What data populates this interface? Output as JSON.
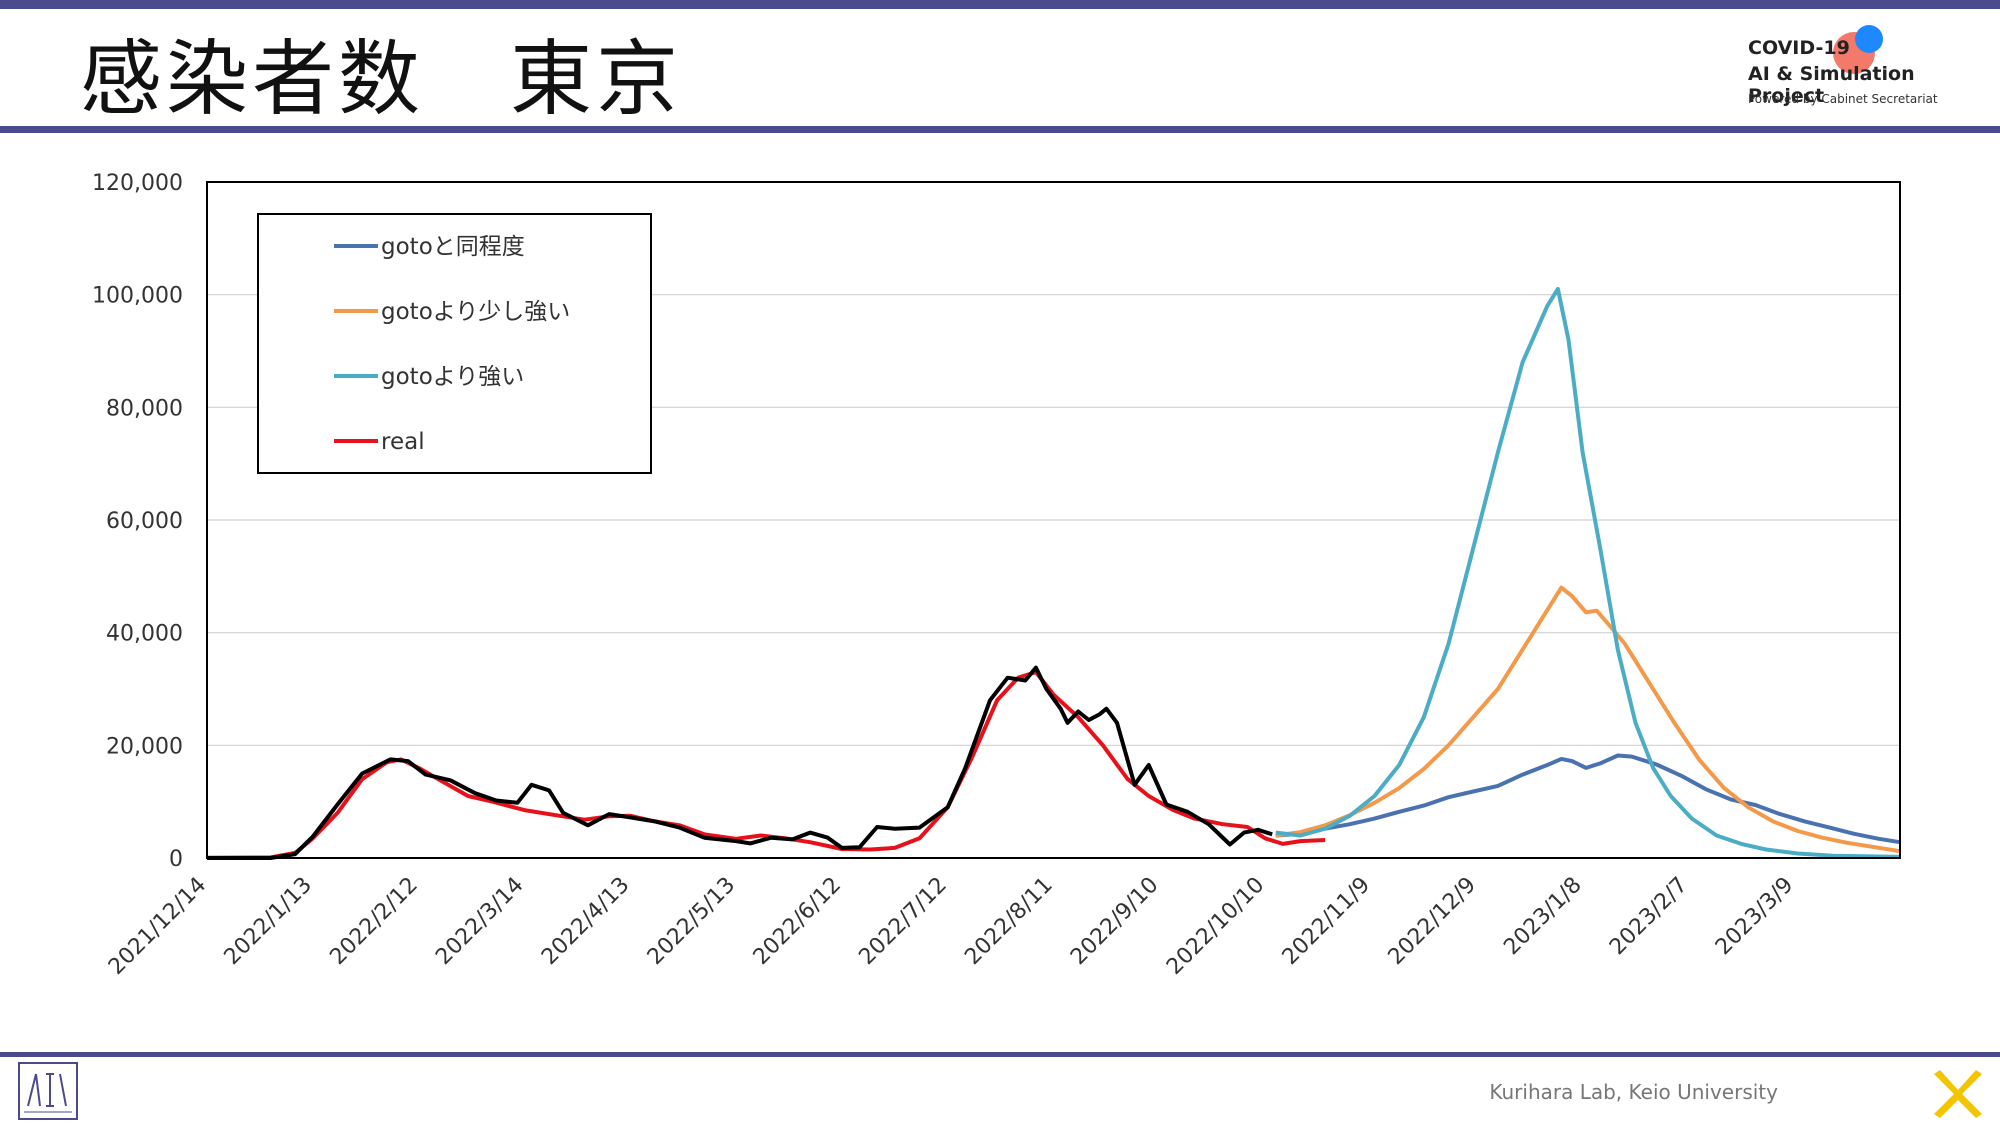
{
  "slide": {
    "title": "感染者数　東京",
    "logo_line1": "COVID-19",
    "logo_line2": "AI & Simulation Project",
    "logo_line3": "Powered by Cabinet Secretariat",
    "footer": "Kurihara Lab, Keio University",
    "accent_color": "#4a4a8c"
  },
  "chart_data": {
    "type": "line",
    "x_tick_labels": [
      "2021/12/14",
      "2022/1/13",
      "2022/2/12",
      "2022/3/14",
      "2022/4/13",
      "2022/5/13",
      "2022/6/12",
      "2022/7/12",
      "2022/8/11",
      "2022/9/10",
      "2022/10/10",
      "2022/11/9",
      "2022/12/9",
      "2023/1/8",
      "2023/2/7",
      "2023/3/9"
    ],
    "y_tick_labels": [
      "0",
      "20,000",
      "40,000",
      "60,000",
      "80,000",
      "100,000",
      "120,000"
    ],
    "ylim": [
      0,
      120000
    ],
    "xlim": [
      "2021-12-14",
      "2023-04-08"
    ],
    "grid": "horizontal",
    "legend_position": "top-left",
    "series": [
      {
        "name": "gotoと同程度",
        "color": "#4a72b0",
        "points": [
          [
            "2022-10-13",
            4000
          ],
          [
            "2022-10-20",
            4300
          ],
          [
            "2022-10-27",
            5200
          ],
          [
            "2022-11-03",
            6000
          ],
          [
            "2022-11-10",
            7000
          ],
          [
            "2022-11-17",
            8200
          ],
          [
            "2022-11-24",
            9300
          ],
          [
            "2022-12-01",
            10800
          ],
          [
            "2022-12-08",
            11800
          ],
          [
            "2022-12-15",
            12800
          ],
          [
            "2022-12-22",
            14800
          ],
          [
            "2022-12-29",
            16500
          ],
          [
            "2023-01-02",
            17600
          ],
          [
            "2023-01-05",
            17200
          ],
          [
            "2023-01-09",
            16000
          ],
          [
            "2023-01-13",
            16800
          ],
          [
            "2023-01-18",
            18200
          ],
          [
            "2023-01-22",
            18000
          ],
          [
            "2023-01-29",
            16600
          ],
          [
            "2023-02-05",
            14600
          ],
          [
            "2023-02-12",
            12200
          ],
          [
            "2023-02-19",
            10400
          ],
          [
            "2023-02-26",
            9400
          ],
          [
            "2023-03-05",
            7800
          ],
          [
            "2023-03-12",
            6500
          ],
          [
            "2023-03-19",
            5400
          ],
          [
            "2023-03-26",
            4300
          ],
          [
            "2023-04-02",
            3400
          ],
          [
            "2023-04-08",
            2800
          ]
        ]
      },
      {
        "name": "gotoより少し強い",
        "color": "#f4994a",
        "points": [
          [
            "2022-10-13",
            4000
          ],
          [
            "2022-10-20",
            4600
          ],
          [
            "2022-10-27",
            5800
          ],
          [
            "2022-11-03",
            7600
          ],
          [
            "2022-11-10",
            9800
          ],
          [
            "2022-11-17",
            12400
          ],
          [
            "2022-11-24",
            15800
          ],
          [
            "2022-12-01",
            20000
          ],
          [
            "2022-12-08",
            25000
          ],
          [
            "2022-12-15",
            30000
          ],
          [
            "2022-12-22",
            37000
          ],
          [
            "2022-12-29",
            44000
          ],
          [
            "2023-01-02",
            48000
          ],
          [
            "2023-01-05",
            46500
          ],
          [
            "2023-01-09",
            43600
          ],
          [
            "2023-01-12",
            43900
          ],
          [
            "2023-01-16",
            41000
          ],
          [
            "2023-01-20",
            38000
          ],
          [
            "2023-01-27",
            31000
          ],
          [
            "2023-02-03",
            24000
          ],
          [
            "2023-02-10",
            17500
          ],
          [
            "2023-02-17",
            12500
          ],
          [
            "2023-02-24",
            9000
          ],
          [
            "2023-03-03",
            6500
          ],
          [
            "2023-03-10",
            4800
          ],
          [
            "2023-03-17",
            3600
          ],
          [
            "2023-03-24",
            2700
          ],
          [
            "2023-03-31",
            2000
          ],
          [
            "2023-04-08",
            1200
          ]
        ]
      },
      {
        "name": "gotoより強い",
        "color": "#4bacc6",
        "points": [
          [
            "2022-10-13",
            4500
          ],
          [
            "2022-10-20",
            4000
          ],
          [
            "2022-10-27",
            5200
          ],
          [
            "2022-11-03",
            7500
          ],
          [
            "2022-11-10",
            11000
          ],
          [
            "2022-11-17",
            16500
          ],
          [
            "2022-11-24",
            25000
          ],
          [
            "2022-12-01",
            38000
          ],
          [
            "2022-12-08",
            55000
          ],
          [
            "2022-12-15",
            72000
          ],
          [
            "2022-12-22",
            88000
          ],
          [
            "2022-12-29",
            98000
          ],
          [
            "2023-01-01",
            101000
          ],
          [
            "2023-01-04",
            92000
          ],
          [
            "2023-01-08",
            72000
          ],
          [
            "2023-01-13",
            55000
          ],
          [
            "2023-01-18",
            37000
          ],
          [
            "2023-01-23",
            24000
          ],
          [
            "2023-01-28",
            16000
          ],
          [
            "2023-02-02",
            11000
          ],
          [
            "2023-02-08",
            7000
          ],
          [
            "2023-02-15",
            4000
          ],
          [
            "2023-02-22",
            2500
          ],
          [
            "2023-03-01",
            1500
          ],
          [
            "2023-03-10",
            800
          ],
          [
            "2023-03-20",
            400
          ],
          [
            "2023-04-08",
            200
          ]
        ]
      },
      {
        "name": "real",
        "color": "#e8101a",
        "points": [
          [
            "2021-12-14",
            50
          ],
          [
            "2022-01-01",
            80
          ],
          [
            "2022-01-08",
            900
          ],
          [
            "2022-01-13",
            3500
          ],
          [
            "2022-01-20",
            8000
          ],
          [
            "2022-01-27",
            14000
          ],
          [
            "2022-02-03",
            17000
          ],
          [
            "2022-02-07",
            17500
          ],
          [
            "2022-02-12",
            16000
          ],
          [
            "2022-02-19",
            13500
          ],
          [
            "2022-02-26",
            11000
          ],
          [
            "2022-03-05",
            10000
          ],
          [
            "2022-03-14",
            8500
          ],
          [
            "2022-03-24",
            7500
          ],
          [
            "2022-03-31",
            6800
          ],
          [
            "2022-04-07",
            7400
          ],
          [
            "2022-04-13",
            7500
          ],
          [
            "2022-04-20",
            6500
          ],
          [
            "2022-04-27",
            5800
          ],
          [
            "2022-05-04",
            4200
          ],
          [
            "2022-05-13",
            3400
          ],
          [
            "2022-05-20",
            4000
          ],
          [
            "2022-05-27",
            3500
          ],
          [
            "2022-06-03",
            2800
          ],
          [
            "2022-06-12",
            1600
          ],
          [
            "2022-06-20",
            1500
          ],
          [
            "2022-06-27",
            1800
          ],
          [
            "2022-07-04",
            3500
          ],
          [
            "2022-07-12",
            9000
          ],
          [
            "2022-07-19",
            18000
          ],
          [
            "2022-07-26",
            28000
          ],
          [
            "2022-08-01",
            32000
          ],
          [
            "2022-08-06",
            33000
          ],
          [
            "2022-08-11",
            29000
          ],
          [
            "2022-08-18",
            25000
          ],
          [
            "2022-08-25",
            20000
          ],
          [
            "2022-09-01",
            14000
          ],
          [
            "2022-09-07",
            11000
          ],
          [
            "2022-09-14",
            8500
          ],
          [
            "2022-09-20",
            7000
          ],
          [
            "2022-09-28",
            6000
          ],
          [
            "2022-10-05",
            5500
          ],
          [
            "2022-10-10",
            3500
          ],
          [
            "2022-10-15",
            2500
          ],
          [
            "2022-10-20",
            3000
          ],
          [
            "2022-10-27",
            3200
          ]
        ]
      },
      {
        "name": "",
        "color": "#000000",
        "points": [
          [
            "2021-12-14",
            0
          ],
          [
            "2022-01-01",
            0
          ],
          [
            "2022-01-08",
            700
          ],
          [
            "2022-01-13",
            3800
          ],
          [
            "2022-01-20",
            9500
          ],
          [
            "2022-01-27",
            15000
          ],
          [
            "2022-02-04",
            17500
          ],
          [
            "2022-02-09",
            17200
          ],
          [
            "2022-02-14",
            14800
          ],
          [
            "2022-02-21",
            13800
          ],
          [
            "2022-02-28",
            11500
          ],
          [
            "2022-03-06",
            10200
          ],
          [
            "2022-03-12",
            9800
          ],
          [
            "2022-03-16",
            13000
          ],
          [
            "2022-03-21",
            12000
          ],
          [
            "2022-03-25",
            8000
          ],
          [
            "2022-04-01",
            5800
          ],
          [
            "2022-04-07",
            7800
          ],
          [
            "2022-04-13",
            7200
          ],
          [
            "2022-04-20",
            6500
          ],
          [
            "2022-04-27",
            5400
          ],
          [
            "2022-05-04",
            3600
          ],
          [
            "2022-05-13",
            3000
          ],
          [
            "2022-05-17",
            2600
          ],
          [
            "2022-05-23",
            3600
          ],
          [
            "2022-05-29",
            3300
          ],
          [
            "2022-06-03",
            4500
          ],
          [
            "2022-06-08",
            3600
          ],
          [
            "2022-06-12",
            1800
          ],
          [
            "2022-06-17",
            1900
          ],
          [
            "2022-06-22",
            5500
          ],
          [
            "2022-06-27",
            5200
          ],
          [
            "2022-07-04",
            5400
          ],
          [
            "2022-07-12",
            9000
          ],
          [
            "2022-07-17",
            16000
          ],
          [
            "2022-07-24",
            28000
          ],
          [
            "2022-07-29",
            32000
          ],
          [
            "2022-08-03",
            31500
          ],
          [
            "2022-08-06",
            33800
          ],
          [
            "2022-08-09",
            30000
          ],
          [
            "2022-08-13",
            26500
          ],
          [
            "2022-08-15",
            24000
          ],
          [
            "2022-08-18",
            26000
          ],
          [
            "2022-08-21",
            24500
          ],
          [
            "2022-08-24",
            25500
          ],
          [
            "2022-08-26",
            26500
          ],
          [
            "2022-08-29",
            24000
          ],
          [
            "2022-09-03",
            13000
          ],
          [
            "2022-09-07",
            16500
          ],
          [
            "2022-09-12",
            9500
          ],
          [
            "2022-09-18",
            8200
          ],
          [
            "2022-09-24",
            6000
          ],
          [
            "2022-09-30",
            2400
          ],
          [
            "2022-10-04",
            4500
          ],
          [
            "2022-10-08",
            5000
          ],
          [
            "2022-10-12",
            4200
          ]
        ]
      }
    ]
  }
}
